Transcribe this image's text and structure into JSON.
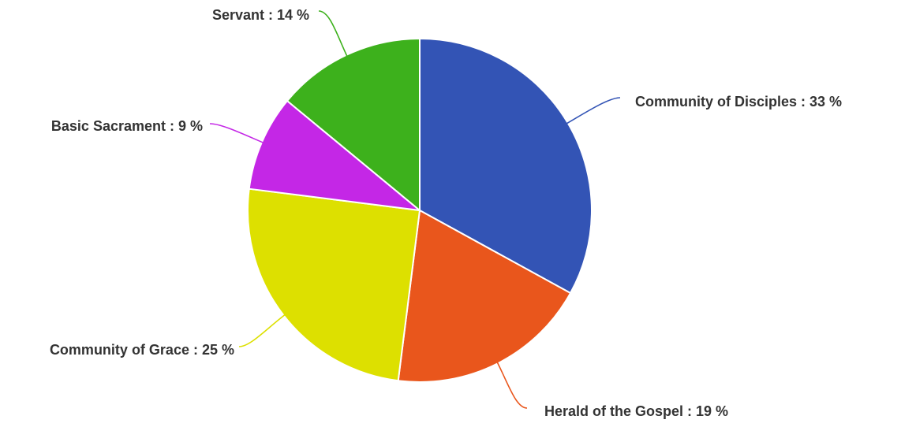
{
  "chart_data": {
    "type": "pie",
    "title": "",
    "slices": [
      {
        "label": "Community of Disciples",
        "value": 33,
        "color": "#3354b5"
      },
      {
        "label": "Herald of the Gospel",
        "value": 19,
        "color": "#e9561c"
      },
      {
        "label": "Community of Grace",
        "value": 25,
        "color": "#dde000"
      },
      {
        "label": "Basic Sacrament",
        "value": 9,
        "color": "#c427e6"
      },
      {
        "label": "Servant",
        "value": 14,
        "color": "#3db11c"
      }
    ],
    "data_labels": [
      "Community of Disciples : 33 %",
      "Herald of the Gospel : 19 %",
      "Community of Grace : 25 %",
      "Basic Sacrament : 9 %",
      "Servant : 14 %"
    ],
    "slice_border_color": "#ffffff",
    "label_text_color": "#333333",
    "start_direction": "top",
    "direction": "clockwise",
    "legend": "none"
  }
}
